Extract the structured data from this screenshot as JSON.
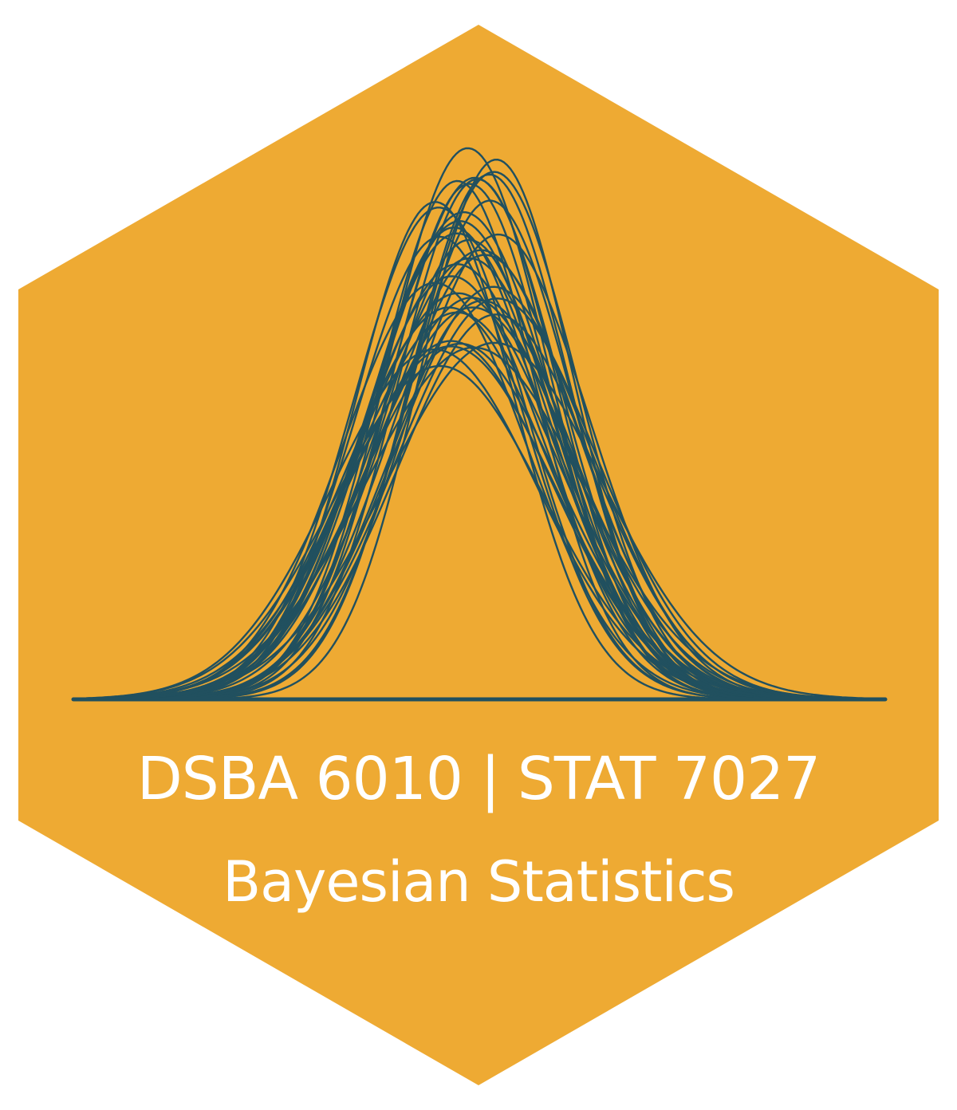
{
  "sticker": {
    "course_codes": "DSBA 6010 | STAT 7027",
    "course_title": "Bayesian Statistics"
  },
  "colors": {
    "hexagon_fill": "#EEAA33",
    "curve_stroke": "#21505F",
    "text": "#FFFFFF",
    "background": "#FFFFFF"
  },
  "icon": "posterior-normal-curves-icon"
}
